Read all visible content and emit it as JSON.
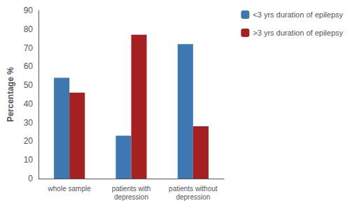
{
  "chart_data": {
    "type": "bar",
    "categories": [
      "whole sample",
      "patients with\ndepression",
      "patients without\ndepression"
    ],
    "series": [
      {
        "name": "<3 yrs duration of epilepsy",
        "color": "#3E78B2",
        "values": [
          54,
          23,
          72
        ]
      },
      {
        "name": ">3 yrs duration of epilepsy",
        "color": "#A52020",
        "values": [
          46,
          77,
          28
        ]
      }
    ],
    "ylabel": "Percentage %",
    "ylim": [
      0,
      90
    ],
    "yticks": [
      0,
      10,
      20,
      30,
      40,
      50,
      60,
      70,
      80,
      90
    ],
    "grid": false,
    "legend": "right"
  }
}
